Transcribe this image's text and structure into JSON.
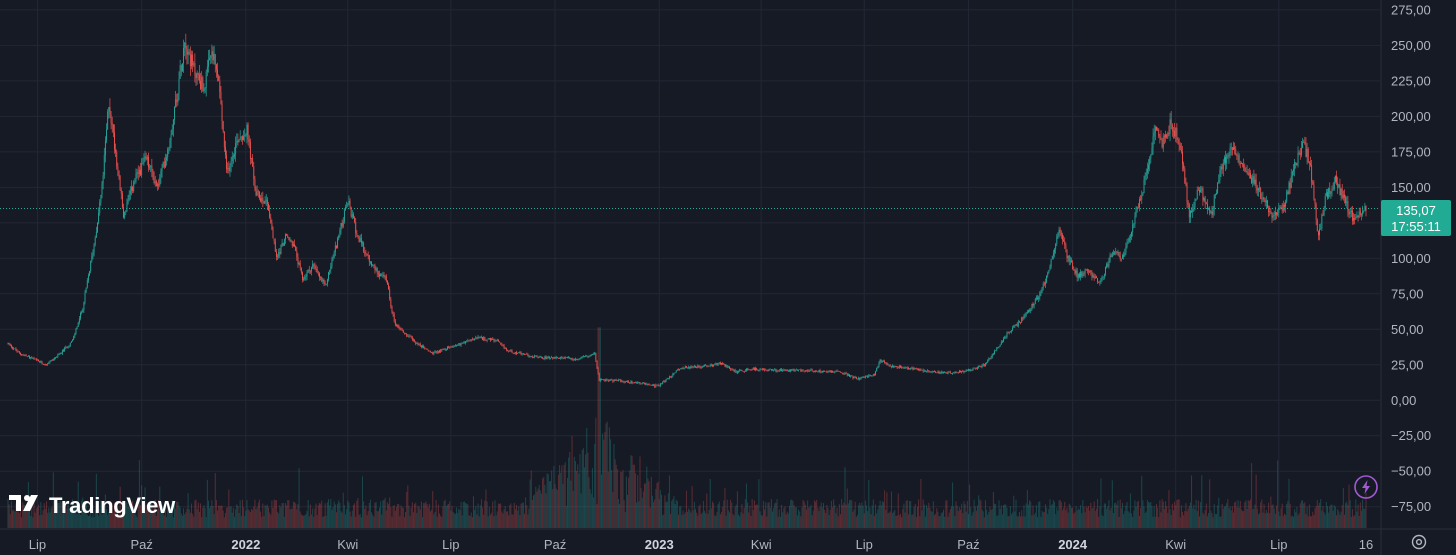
{
  "brand": {
    "name": "TradingView"
  },
  "icons": {
    "logo": "tradingview-logo-icon",
    "flash": "lightning-icon",
    "settings": "gear-icon"
  },
  "colors": {
    "background": "#161a25",
    "grid": "#232735",
    "up": "#26a69a",
    "down": "#ef5350",
    "price_line": "#22ab94",
    "flash": "#a15ad2"
  },
  "chart_data": {
    "type": "candlestick",
    "title": "",
    "ylim": [
      -90,
      282
    ],
    "y_ticks": [
      275,
      250,
      225,
      200,
      175,
      150,
      125,
      100,
      75,
      50,
      25,
      0,
      -25,
      -50,
      -75
    ],
    "y_tick_labels": [
      "275,00",
      "250,00",
      "225,00",
      "200,00",
      "175,00",
      "150,00",
      "125,00",
      "100,00",
      "75,00",
      "50,00",
      "25,00",
      "0,00",
      "−25,00",
      "−50,00",
      "−75,00"
    ],
    "x_range": [
      "2021-06-05",
      "2024-09-16"
    ],
    "x_ticks": [
      {
        "date": "2021-07-01",
        "label": "Lip",
        "bold": false
      },
      {
        "date": "2021-10-01",
        "label": "Paź",
        "bold": false
      },
      {
        "date": "2022-01-01",
        "label": "2022",
        "bold": true
      },
      {
        "date": "2022-04-01",
        "label": "Kwi",
        "bold": false
      },
      {
        "date": "2022-07-01",
        "label": "Lip",
        "bold": false
      },
      {
        "date": "2022-10-01",
        "label": "Paź",
        "bold": false
      },
      {
        "date": "2023-01-01",
        "label": "2023",
        "bold": true
      },
      {
        "date": "2023-04-01",
        "label": "Kwi",
        "bold": false
      },
      {
        "date": "2023-07-01",
        "label": "Lip",
        "bold": false
      },
      {
        "date": "2023-10-01",
        "label": "Paź",
        "bold": false
      },
      {
        "date": "2024-01-01",
        "label": "2024",
        "bold": true
      },
      {
        "date": "2024-04-01",
        "label": "Kwi",
        "bold": false
      },
      {
        "date": "2024-07-01",
        "label": "Lip",
        "bold": false
      },
      {
        "date": "2024-09-16",
        "label": "16",
        "bold": false
      }
    ],
    "price_path": [
      [
        "2021-06-05",
        40
      ],
      [
        "2021-06-15",
        33
      ],
      [
        "2021-06-25",
        30
      ],
      [
        "2021-07-08",
        25
      ],
      [
        "2021-07-20",
        32
      ],
      [
        "2021-08-01",
        42
      ],
      [
        "2021-08-10",
        65
      ],
      [
        "2021-08-20",
        110
      ],
      [
        "2021-08-27",
        150
      ],
      [
        "2021-09-02",
        210
      ],
      [
        "2021-09-08",
        175
      ],
      [
        "2021-09-15",
        130
      ],
      [
        "2021-09-25",
        155
      ],
      [
        "2021-10-05",
        170
      ],
      [
        "2021-10-15",
        150
      ],
      [
        "2021-10-25",
        180
      ],
      [
        "2021-11-02",
        220
      ],
      [
        "2021-11-08",
        255
      ],
      [
        "2021-11-15",
        235
      ],
      [
        "2021-11-25",
        220
      ],
      [
        "2021-12-02",
        245
      ],
      [
        "2021-12-08",
        225
      ],
      [
        "2021-12-15",
        160
      ],
      [
        "2021-12-25",
        185
      ],
      [
        "2022-01-02",
        190
      ],
      [
        "2022-01-10",
        145
      ],
      [
        "2022-01-20",
        140
      ],
      [
        "2022-01-28",
        100
      ],
      [
        "2022-02-05",
        115
      ],
      [
        "2022-02-12",
        110
      ],
      [
        "2022-02-20",
        85
      ],
      [
        "2022-03-01",
        95
      ],
      [
        "2022-03-12",
        80
      ],
      [
        "2022-03-22",
        110
      ],
      [
        "2022-04-01",
        140
      ],
      [
        "2022-04-10",
        115
      ],
      [
        "2022-04-22",
        95
      ],
      [
        "2022-05-05",
        85
      ],
      [
        "2022-05-12",
        55
      ],
      [
        "2022-05-20",
        48
      ],
      [
        "2022-06-01",
        40
      ],
      [
        "2022-06-15",
        33
      ],
      [
        "2022-06-25",
        36
      ],
      [
        "2022-07-10",
        40
      ],
      [
        "2022-07-25",
        44
      ],
      [
        "2022-08-10",
        42
      ],
      [
        "2022-08-20",
        35
      ],
      [
        "2022-09-05",
        32
      ],
      [
        "2022-09-20",
        30
      ],
      [
        "2022-10-05",
        30
      ],
      [
        "2022-10-20",
        29
      ],
      [
        "2022-11-05",
        33
      ],
      [
        "2022-11-09",
        14
      ],
      [
        "2022-11-25",
        14
      ],
      [
        "2022-12-15",
        12
      ],
      [
        "2022-12-30",
        10
      ],
      [
        "2023-01-10",
        16
      ],
      [
        "2023-01-20",
        23
      ],
      [
        "2023-02-10",
        24
      ],
      [
        "2023-02-25",
        26
      ],
      [
        "2023-03-10",
        20
      ],
      [
        "2023-03-25",
        22
      ],
      [
        "2023-04-15",
        21
      ],
      [
        "2023-05-10",
        21
      ],
      [
        "2023-06-10",
        20
      ],
      [
        "2023-06-25",
        15
      ],
      [
        "2023-07-10",
        18
      ],
      [
        "2023-07-15",
        28
      ],
      [
        "2023-07-25",
        24
      ],
      [
        "2023-08-15",
        22
      ],
      [
        "2023-09-10",
        19
      ],
      [
        "2023-10-01",
        21
      ],
      [
        "2023-10-15",
        25
      ],
      [
        "2023-10-25",
        35
      ],
      [
        "2023-11-05",
        48
      ],
      [
        "2023-11-15",
        55
      ],
      [
        "2023-11-25",
        65
      ],
      [
        "2023-12-05",
        78
      ],
      [
        "2023-12-12",
        95
      ],
      [
        "2023-12-20",
        120
      ],
      [
        "2023-12-28",
        100
      ],
      [
        "2024-01-05",
        88
      ],
      [
        "2024-01-15",
        92
      ],
      [
        "2024-01-25",
        82
      ],
      [
        "2024-02-05",
        105
      ],
      [
        "2024-02-15",
        100
      ],
      [
        "2024-02-25",
        130
      ],
      [
        "2024-03-05",
        155
      ],
      [
        "2024-03-15",
        195
      ],
      [
        "2024-03-20",
        180
      ],
      [
        "2024-03-28",
        195
      ],
      [
        "2024-04-05",
        180
      ],
      [
        "2024-04-13",
        130
      ],
      [
        "2024-04-22",
        150
      ],
      [
        "2024-05-02",
        130
      ],
      [
        "2024-05-10",
        160
      ],
      [
        "2024-05-20",
        180
      ],
      [
        "2024-06-01",
        165
      ],
      [
        "2024-06-15",
        145
      ],
      [
        "2024-06-25",
        130
      ],
      [
        "2024-07-05",
        135
      ],
      [
        "2024-07-15",
        165
      ],
      [
        "2024-07-22",
        180
      ],
      [
        "2024-07-28",
        170
      ],
      [
        "2024-08-05",
        115
      ],
      [
        "2024-08-12",
        145
      ],
      [
        "2024-08-20",
        155
      ],
      [
        "2024-08-28",
        140
      ],
      [
        "2024-09-05",
        128
      ],
      [
        "2024-09-10",
        130
      ],
      [
        "2024-09-16",
        135
      ]
    ],
    "last_price": 135.07,
    "last_price_label": "135,07",
    "countdown_label": "17:55:11",
    "volume": {
      "baseline": "bottom",
      "peak_date": "2022-11-09",
      "peak_fraction": 0.38
    }
  }
}
